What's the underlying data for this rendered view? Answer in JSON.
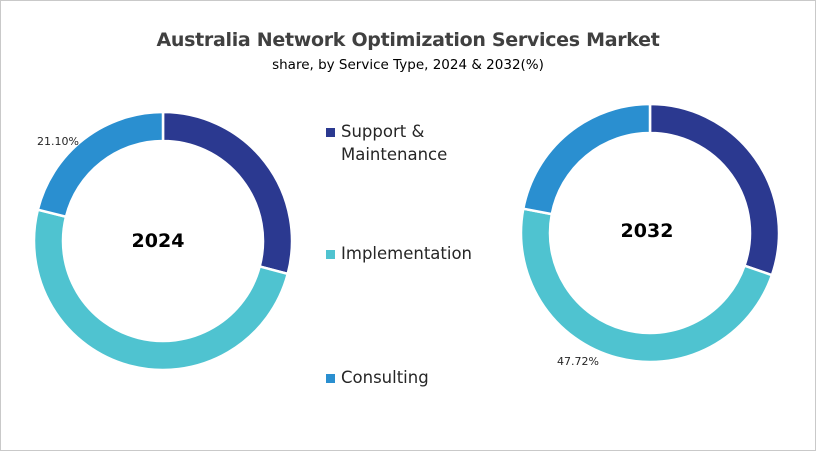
{
  "chart_data": {
    "type": "pie",
    "subtype": "donut",
    "title": "Australia Network Optimization Services Market",
    "subtitle": "share, by Service Type, 2024 & 2032(%)",
    "categories": [
      "Support & Maintenance",
      "Implementation",
      "Consulting"
    ],
    "colors": [
      "#2B3990",
      "#4FC3D0",
      "#2A8FD0"
    ],
    "series": [
      {
        "name": "2024",
        "values": [
          29.1,
          49.8,
          21.1
        ],
        "labels_shown": {
          "Consulting": "21.10%"
        }
      },
      {
        "name": "2032",
        "values": [
          30.3,
          47.72,
          21.98
        ],
        "labels_shown": {
          "Implementation": "47.72%"
        }
      }
    ],
    "legend_position": "center"
  },
  "header": {
    "title": "Australia Network Optimization Services Market",
    "subtitle": "share, by Service Type, 2024 & 2032(%)"
  },
  "charts": [
    {
      "year": "2024",
      "data_label": "21.10%"
    },
    {
      "year": "2032",
      "data_label": "47.72%"
    }
  ],
  "legend": {
    "items": [
      {
        "label_line1": "Support &",
        "label_line2": "Maintenance",
        "color": "#2B3990"
      },
      {
        "label": "Implementation",
        "color": "#4FC3D0"
      },
      {
        "label": "Consulting",
        "color": "#2A8FD0"
      }
    ]
  }
}
